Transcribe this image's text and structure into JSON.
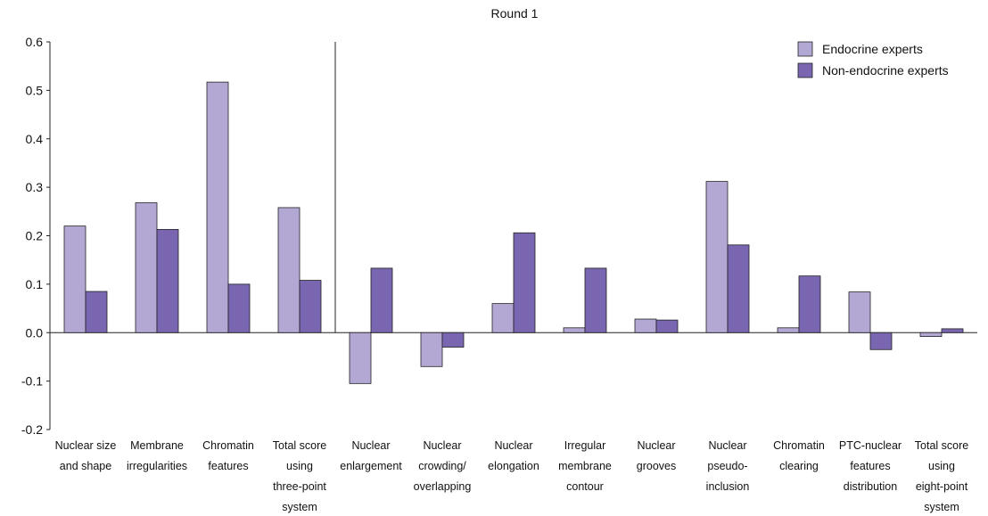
{
  "chart_data": {
    "type": "bar",
    "title": "Round 1",
    "xlabel": "",
    "ylabel": "",
    "ylim": [
      -0.2,
      0.6
    ],
    "yticks": [
      "0.6",
      "0.5",
      "0.4",
      "0.3",
      "0.2",
      "0.1",
      "0.0",
      "-0.1",
      "-0.2"
    ],
    "categories": [
      [
        "Nuclear size",
        "and shape"
      ],
      [
        "Membrane",
        "irregularities"
      ],
      [
        "Chromatin",
        "features"
      ],
      [
        "Total score",
        "using",
        "three-point",
        "system"
      ],
      [
        "Nuclear",
        "enlargement"
      ],
      [
        "Nuclear",
        "crowding/",
        "overlapping"
      ],
      [
        "Nuclear",
        "elongation"
      ],
      [
        "Irregular",
        "membrane",
        "contour"
      ],
      [
        "Nuclear",
        "grooves"
      ],
      [
        "Nuclear",
        "pseudo-",
        "inclusion"
      ],
      [
        "Chromatin",
        "clearing"
      ],
      [
        "PTC-nuclear",
        "features",
        "distribution"
      ],
      [
        "Total score",
        "using",
        "eight-point",
        "system"
      ]
    ],
    "series": [
      {
        "name": "Endocrine experts",
        "color": "#b3a7d4",
        "values": [
          0.22,
          0.268,
          0.517,
          0.258,
          -0.105,
          -0.07,
          0.06,
          0.01,
          0.028,
          0.312,
          0.01,
          0.084,
          -0.008
        ]
      },
      {
        "name": "Non-endocrine experts",
        "color": "#7a66b0",
        "values": [
          0.085,
          0.213,
          0.1,
          0.108,
          0.133,
          -0.03,
          0.206,
          0.133,
          0.026,
          0.181,
          0.117,
          -0.035,
          0.008
        ]
      }
    ],
    "divider_after_index": 3,
    "legend": "top-right",
    "grid": false
  }
}
